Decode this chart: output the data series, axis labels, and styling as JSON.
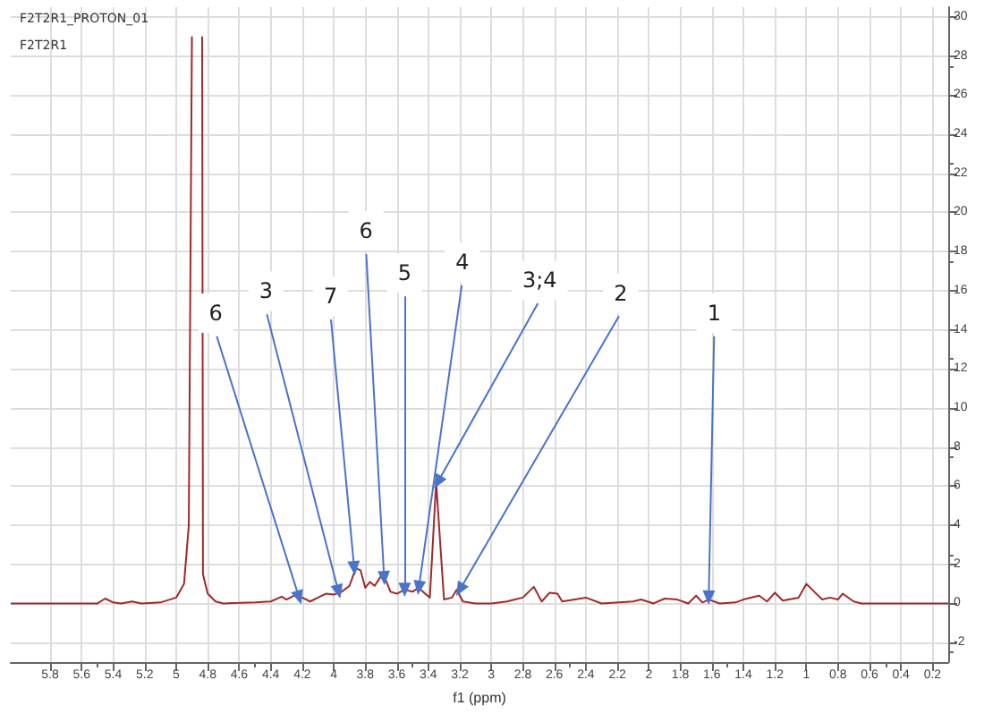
{
  "chart_data": {
    "type": "line",
    "title": "F2T2R1_PROTON_01",
    "subtitle": "F2T2R1",
    "xlabel": "f1 (ppm)",
    "x": [
      6.05,
      5.5,
      5.45,
      5.4,
      5.35,
      5.28,
      5.22,
      5.1,
      5.0,
      4.95,
      4.92,
      4.9,
      4.89,
      4.84,
      4.835,
      4.83,
      4.8,
      4.75,
      4.7,
      4.5,
      4.4,
      4.33,
      4.3,
      4.25,
      4.2,
      4.15,
      4.1,
      4.05,
      4.0,
      3.95,
      3.9,
      3.86,
      3.83,
      3.8,
      3.77,
      3.74,
      3.7,
      3.67,
      3.64,
      3.6,
      3.55,
      3.5,
      3.46,
      3.42,
      3.39,
      3.35,
      3.3,
      3.25,
      3.22,
      3.18,
      3.1,
      3.0,
      2.9,
      2.85,
      2.8,
      2.73,
      2.68,
      2.63,
      2.58,
      2.55,
      2.4,
      2.3,
      2.1,
      2.05,
      1.97,
      1.9,
      1.82,
      1.75,
      1.7,
      1.66,
      1.62,
      1.55,
      1.45,
      1.4,
      1.3,
      1.25,
      1.2,
      1.15,
      1.05,
      1.0,
      0.95,
      0.9,
      0.85,
      0.8,
      0.77,
      0.7,
      0.65,
      0.1
    ],
    "series": [
      {
        "color": "#a0292a",
        "values": [
          0,
          0,
          0.25,
          0.05,
          0,
          0.1,
          0,
          0.05,
          0.3,
          1,
          4,
          29,
          null,
          null,
          29,
          1.5,
          0.5,
          0.1,
          0,
          0.05,
          0.1,
          0.35,
          0.2,
          0.4,
          0.3,
          0.1,
          0.3,
          0.5,
          0.45,
          0.6,
          0.9,
          1.8,
          1.7,
          0.8,
          1.1,
          0.9,
          1.4,
          1.2,
          0.6,
          0.5,
          0.7,
          0.6,
          0.8,
          0.5,
          0.3,
          6.2,
          0.2,
          0.3,
          0.7,
          0.1,
          0,
          0,
          0.1,
          0.2,
          0.3,
          0.85,
          0.1,
          0.55,
          0.5,
          0.1,
          0.3,
          0,
          0.1,
          0.2,
          0,
          0.25,
          0.2,
          0,
          0.4,
          0.05,
          0.2,
          0,
          0.05,
          0.2,
          0.4,
          0.1,
          0.55,
          0.15,
          0.3,
          1.0,
          0.6,
          0.2,
          0.3,
          0.2,
          0.5,
          0.1,
          0,
          0
        ]
      }
    ],
    "annotations": [
      {
        "text": "6",
        "x": 4.22,
        "y": 0.3
      },
      {
        "text": "3",
        "x": 3.97,
        "y": 0.6
      },
      {
        "text": "7",
        "x": 3.87,
        "y": 1.8
      },
      {
        "text": "6",
        "x": 3.68,
        "y": 1.3
      },
      {
        "text": "5",
        "x": 3.55,
        "y": 0.7
      },
      {
        "text": "4",
        "x": 3.46,
        "y": 0.8
      },
      {
        "text": "3;4",
        "x": 3.34,
        "y": 6.2
      },
      {
        "text": "2",
        "x": 3.2,
        "y": 0.7
      },
      {
        "text": "1",
        "x": 1.62,
        "y": 0.3
      }
    ],
    "xlim": [
      6.05,
      0.1
    ],
    "xticks": [
      5.8,
      5.6,
      5.4,
      5.2,
      5.0,
      4.8,
      4.6,
      4.4,
      4.2,
      4.0,
      3.8,
      3.6,
      3.4,
      3.2,
      3.0,
      2.8,
      2.6,
      2.4,
      2.2,
      2.0,
      1.8,
      1.6,
      1.4,
      1.2,
      1.0,
      0.8,
      0.6,
      0.4,
      0.2
    ],
    "ylim": [
      -3,
      30.5
    ],
    "yticks": [
      -2,
      0,
      2,
      4,
      6,
      8,
      10,
      12,
      14,
      16,
      18,
      20,
      22,
      24,
      26,
      28,
      30
    ],
    "grid": true,
    "marker": "none",
    "line_style": "solid"
  }
}
